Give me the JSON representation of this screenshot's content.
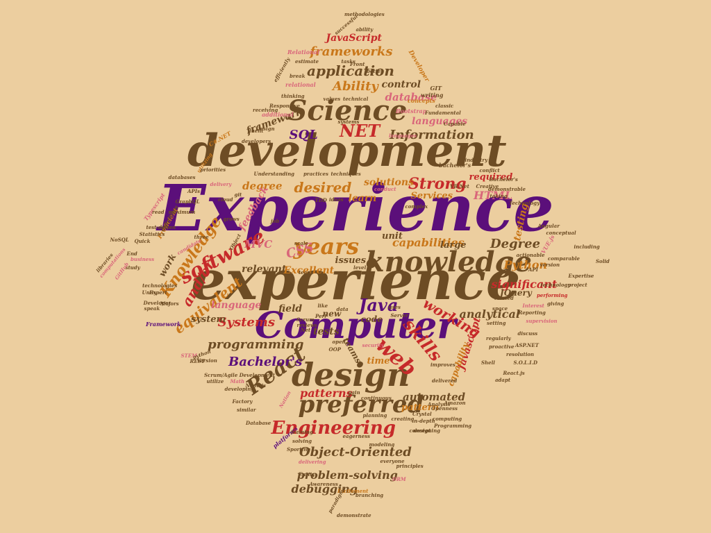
{
  "palette": {
    "background": "#ecce9f",
    "purple": "#5b0f7a",
    "brown": "#6d4c24",
    "red": "#c62a2a",
    "orange": "#c9771a",
    "pink": "#d9667a"
  },
  "words": [
    {
      "text": "Experience",
      "color": "purple"
    },
    {
      "text": "experience",
      "color": "brown"
    },
    {
      "text": "development",
      "color": "brown"
    },
    {
      "text": "knowledge",
      "color": "brown"
    },
    {
      "text": "Computer",
      "color": "purple"
    },
    {
      "text": "Science",
      "color": "brown"
    },
    {
      "text": "design",
      "color": "brown"
    },
    {
      "text": "software",
      "color": "red"
    },
    {
      "text": "years",
      "color": "orange"
    },
    {
      "text": "preferred",
      "color": "brown"
    },
    {
      "text": "Engineering",
      "color": "red"
    },
    {
      "text": "React",
      "color": "brown"
    },
    {
      "text": "skills",
      "color": "red"
    },
    {
      "text": "web",
      "color": "red"
    },
    {
      "text": "Knowledge",
      "color": "orange"
    },
    {
      "text": "application",
      "color": "brown"
    },
    {
      "text": "frameworks",
      "color": "orange"
    },
    {
      "text": "NET",
      "color": "red"
    },
    {
      "text": "Java",
      "color": "purple"
    },
    {
      "text": "working",
      "color": "red"
    },
    {
      "text": "Strong",
      "color": "red"
    },
    {
      "text": "desired",
      "color": "orange"
    },
    {
      "text": "Object-Oriented",
      "color": "brown"
    },
    {
      "text": "Information",
      "color": "brown"
    },
    {
      "text": "Degree",
      "color": "brown"
    },
    {
      "text": "equivalent",
      "color": "orange"
    },
    {
      "text": "and/or",
      "color": "red"
    },
    {
      "text": "Systems",
      "color": "red"
    },
    {
      "text": "Bachelor's",
      "color": "purple"
    },
    {
      "text": "programming",
      "color": "brown"
    },
    {
      "text": "patterns",
      "color": "red"
    },
    {
      "text": "problem-solving",
      "color": "brown"
    },
    {
      "text": "debugging",
      "color": "brown"
    },
    {
      "text": "automated",
      "color": "brown"
    },
    {
      "text": "analytical",
      "color": "brown"
    },
    {
      "text": "Ability",
      "color": "orange"
    },
    {
      "text": "SQL",
      "color": "purple"
    },
    {
      "text": "CSS",
      "color": "pink"
    },
    {
      "text": "MVC",
      "color": "pink"
    },
    {
      "text": "HTML",
      "color": "pink"
    },
    {
      "text": "Python",
      "color": "orange"
    },
    {
      "text": "JavaScript",
      "color": "red"
    },
    {
      "text": "Javascript",
      "color": "red"
    },
    {
      "text": "capabilities",
      "color": "orange"
    },
    {
      "text": "significant",
      "color": "red"
    },
    {
      "text": "required",
      "color": "red"
    },
    {
      "text": "testing",
      "color": "orange"
    },
    {
      "text": "solutions",
      "color": "orange"
    },
    {
      "text": "learn",
      "color": "orange"
    },
    {
      "text": "degree",
      "color": "orange"
    },
    {
      "text": "database",
      "color": "pink"
    },
    {
      "text": "languages",
      "color": "pink"
    },
    {
      "text": "framework",
      "color": "brown"
    },
    {
      "text": "control",
      "color": "brown"
    },
    {
      "text": "system",
      "color": "brown"
    },
    {
      "text": "relevant",
      "color": "brown"
    },
    {
      "text": "Excellent",
      "color": "orange"
    },
    {
      "text": "issues",
      "color": "brown"
    },
    {
      "text": "unit",
      "color": "brown"
    },
    {
      "text": "large",
      "color": "brown"
    },
    {
      "text": "field",
      "color": "brown"
    },
    {
      "text": "tests",
      "color": "brown"
    },
    {
      "text": "work",
      "color": "brown"
    },
    {
      "text": "language",
      "color": "pink"
    },
    {
      "text": "feedback",
      "color": "pink"
    },
    {
      "text": "JQuery",
      "color": "brown"
    },
    {
      "text": "time",
      "color": "orange"
    },
    {
      "text": "pattern",
      "color": "orange"
    },
    {
      "text": "code",
      "color": "brown"
    },
    {
      "text": "teams",
      "color": "brown"
    },
    {
      "text": "new",
      "color": "brown"
    },
    {
      "text": "Services",
      "color": "orange"
    },
    {
      "text": "capability",
      "color": "orange"
    },
    {
      "text": "methodologies",
      "color": "brown"
    },
    {
      "text": "successful",
      "color": "brown"
    },
    {
      "text": "ability",
      "color": "brown"
    },
    {
      "text": "Relational",
      "color": "pink"
    },
    {
      "text": "estimate",
      "color": "brown"
    },
    {
      "text": "tasks",
      "color": "brown"
    },
    {
      "text": "Front",
      "color": "brown"
    },
    {
      "text": "better",
      "color": "brown"
    },
    {
      "text": "Developer",
      "color": "orange"
    },
    {
      "text": "efficiently",
      "color": "brown"
    },
    {
      "text": "relational",
      "color": "pink"
    },
    {
      "text": "values",
      "color": "brown"
    },
    {
      "text": "technical",
      "color": "brown"
    },
    {
      "text": "writing",
      "color": "brown"
    },
    {
      "text": "thinking",
      "color": "brown"
    },
    {
      "text": "classic",
      "color": "brown"
    },
    {
      "text": "concepts",
      "color": "orange"
    },
    {
      "text": "GIT",
      "color": "brown"
    },
    {
      "text": "Bootstrap",
      "color": "pink"
    },
    {
      "text": "Fundamental",
      "color": "brown"
    },
    {
      "text": "Capable",
      "color": "brown"
    },
    {
      "text": "Responsive",
      "color": "brown"
    },
    {
      "text": "receiving",
      "color": "brown"
    },
    {
      "text": "additional",
      "color": "pink"
    },
    {
      "text": "systems",
      "color": "brown"
    },
    {
      "text": "fluent",
      "color": "brown"
    },
    {
      "text": "Design",
      "color": "brown"
    },
    {
      "text": "developers",
      "color": "brown"
    },
    {
      "text": "C#.NET",
      "color": "orange"
    },
    {
      "text": "utilizing",
      "color": "orange"
    },
    {
      "text": "priorities",
      "color": "brown"
    },
    {
      "text": "Understanding",
      "color": "brown"
    },
    {
      "text": "practices",
      "color": "brown"
    },
    {
      "text": "techniques",
      "color": "brown"
    },
    {
      "text": "industry",
      "color": "brown"
    },
    {
      "text": "conflict",
      "color": "brown"
    },
    {
      "text": "bachelor's",
      "color": "brown"
    },
    {
      "text": "Bachelor's",
      "color": "brown"
    },
    {
      "text": "databases",
      "color": "brown"
    },
    {
      "text": "delivery",
      "color": "pink"
    },
    {
      "text": "APIs",
      "color": "brown"
    },
    {
      "text": "GraphQL",
      "color": "brown"
    },
    {
      "text": "cloud",
      "color": "brown"
    },
    {
      "text": "git",
      "color": "brown"
    },
    {
      "text": "conduct",
      "color": "pink"
    },
    {
      "text": "VB.Net",
      "color": "brown"
    },
    {
      "text": "Creative",
      "color": "brown"
    },
    {
      "text": "demonstrable",
      "color": "brown"
    },
    {
      "text": "taking",
      "color": "brown"
    },
    {
      "text": "Technology",
      "color": "brown"
    },
    {
      "text": "Proficient",
      "color": "orange"
    },
    {
      "text": "TDD",
      "color": "brown"
    },
    {
      "text": "ideas",
      "color": "brown"
    },
    {
      "text": "complex",
      "color": "brown"
    },
    {
      "text": "Typescript",
      "color": "pink"
    },
    {
      "text": "definitions",
      "color": "brown"
    },
    {
      "text": "read",
      "color": "brown"
    },
    {
      "text": "maximum",
      "color": "brown"
    },
    {
      "text": "grows",
      "color": "brown"
    },
    {
      "text": "job",
      "color": "brown"
    },
    {
      "text": "Angular",
      "color": "brown"
    },
    {
      "text": "conceptual",
      "color": "brown"
    },
    {
      "text": "test-driven",
      "color": "brown"
    },
    {
      "text": "Statistics",
      "color": "brown"
    },
    {
      "text": "NoSQL",
      "color": "brown"
    },
    {
      "text": "Quick",
      "color": "brown"
    },
    {
      "text": "End",
      "color": "brown"
    },
    {
      "text": "business",
      "color": "pink"
    },
    {
      "text": "three",
      "color": "brown"
    },
    {
      "text": "candidate",
      "color": "pink"
    },
    {
      "text": "Object",
      "color": "brown"
    },
    {
      "text": "scale",
      "color": "brown"
    },
    {
      "text": "including",
      "color": "brown"
    },
    {
      "text": "Solid",
      "color": "brown"
    },
    {
      "text": "libraries",
      "color": "brown"
    },
    {
      "text": "computations",
      "color": "pink"
    },
    {
      "text": "study",
      "color": "brown"
    },
    {
      "text": "GitHub",
      "color": "pink"
    },
    {
      "text": "Expertise",
      "color": "brown"
    },
    {
      "text": "project",
      "color": "brown"
    },
    {
      "text": "technologies",
      "color": "brown"
    },
    {
      "text": "Unity",
      "color": "brown"
    },
    {
      "text": "Expert",
      "color": "brown"
    },
    {
      "text": "Developer",
      "color": "brown"
    },
    {
      "text": "speak",
      "color": "brown"
    },
    {
      "text": "Majors",
      "color": "brown"
    },
    {
      "text": "technology",
      "color": "brown"
    },
    {
      "text": "performing",
      "color": "red"
    },
    {
      "text": "Interest",
      "color": "pink"
    },
    {
      "text": "giving",
      "color": "brown"
    },
    {
      "text": "Reporting",
      "color": "brown"
    },
    {
      "text": "supervision",
      "color": "pink"
    },
    {
      "text": "Framework",
      "color": "purple"
    },
    {
      "text": "STEM",
      "color": "pink"
    },
    {
      "text": "Version",
      "color": "brown"
    },
    {
      "text": "Perl",
      "color": "brown"
    },
    {
      "text": "Scrum",
      "color": "brown"
    },
    {
      "text": "Net",
      "color": "brown"
    },
    {
      "text": "reviews",
      "color": "brown"
    },
    {
      "text": "ASP.NET",
      "color": "brown"
    },
    {
      "text": "regularly",
      "color": "brown"
    },
    {
      "text": "proactive",
      "color": "brown"
    },
    {
      "text": "resolution",
      "color": "brown"
    },
    {
      "text": "python",
      "color": "brown"
    },
    {
      "text": "REST",
      "color": "brown"
    },
    {
      "text": "Scrum/Agile Development",
      "color": "brown"
    },
    {
      "text": "utilize",
      "color": "brown"
    },
    {
      "text": "Math",
      "color": "pink"
    },
    {
      "text": "Node.js",
      "color": "brown"
    },
    {
      "text": "developing",
      "color": "brown"
    },
    {
      "text": "Factory",
      "color": "brown"
    },
    {
      "text": "similar",
      "color": "brown"
    },
    {
      "text": "Database",
      "color": "brown"
    },
    {
      "text": "platforms",
      "color": "purple"
    },
    {
      "text": "training",
      "color": "brown"
    },
    {
      "text": "solving",
      "color": "brown"
    },
    {
      "text": "Sporting",
      "color": "brown"
    },
    {
      "text": "delivering",
      "color": "pink"
    },
    {
      "text": "Entity",
      "color": "brown"
    },
    {
      "text": "Awareness",
      "color": "brown"
    },
    {
      "text": "Excitement",
      "color": "orange"
    },
    {
      "text": "branching",
      "color": "brown"
    },
    {
      "text": "paradigms",
      "color": "brown"
    },
    {
      "text": "demonstrate",
      "color": "brown"
    },
    {
      "text": "ORM",
      "color": "pink"
    },
    {
      "text": "everyone",
      "color": "brown"
    },
    {
      "text": "principles",
      "color": "brown"
    },
    {
      "text": "Openness",
      "color": "brown"
    },
    {
      "text": "Crystal",
      "color": "brown"
    },
    {
      "text": "computing",
      "color": "brown"
    },
    {
      "text": "Programming",
      "color": "brown"
    },
    {
      "text": "designing",
      "color": "brown"
    },
    {
      "text": "planning",
      "color": "brown"
    },
    {
      "text": "creating",
      "color": "brown"
    },
    {
      "text": "in-depth",
      "color": "brown"
    },
    {
      "text": "concept",
      "color": "brown"
    },
    {
      "text": "modeling",
      "color": "brown"
    },
    {
      "text": "eagerness",
      "color": "brown"
    },
    {
      "text": "gain",
      "color": "brown"
    },
    {
      "text": "continuous",
      "color": "brown"
    },
    {
      "text": "Shell",
      "color": "brown"
    },
    {
      "text": "adapt",
      "color": "brown"
    },
    {
      "text": "React.js",
      "color": "brown"
    },
    {
      "text": "S.O.L.I.D",
      "color": "brown"
    },
    {
      "text": "delivered",
      "color": "brown"
    },
    {
      "text": "improves",
      "color": "brown"
    },
    {
      "text": "security",
      "color": "pink"
    },
    {
      "text": "open",
      "color": "brown"
    },
    {
      "text": "Server",
      "color": "brown"
    },
    {
      "text": "space",
      "color": "brown"
    },
    {
      "text": "related",
      "color": "brown"
    },
    {
      "text": "comparable",
      "color": "brown"
    },
    {
      "text": "version",
      "color": "brown"
    },
    {
      "text": "actionable",
      "color": "brown"
    },
    {
      "text": "API",
      "color": "brown"
    },
    {
      "text": "VUE.js",
      "color": "pink"
    },
    {
      "text": "setting",
      "color": "brown"
    },
    {
      "text": "discuss",
      "color": "brown"
    },
    {
      "text": "Analysis",
      "color": "brown"
    },
    {
      "text": "Amazon",
      "color": "brown"
    },
    {
      "text": "OOP",
      "color": "brown"
    },
    {
      "text": "uses",
      "color": "brown"
    },
    {
      "text": "like",
      "color": "brown"
    },
    {
      "text": "level",
      "color": "brown"
    },
    {
      "text": "team",
      "color": "brown"
    },
    {
      "text": "data",
      "color": "brown"
    },
    {
      "text": "break",
      "color": "brown"
    },
    {
      "text": "Nation",
      "color": "pink"
    },
    {
      "text": "languages",
      "color": "pink"
    }
  ]
}
